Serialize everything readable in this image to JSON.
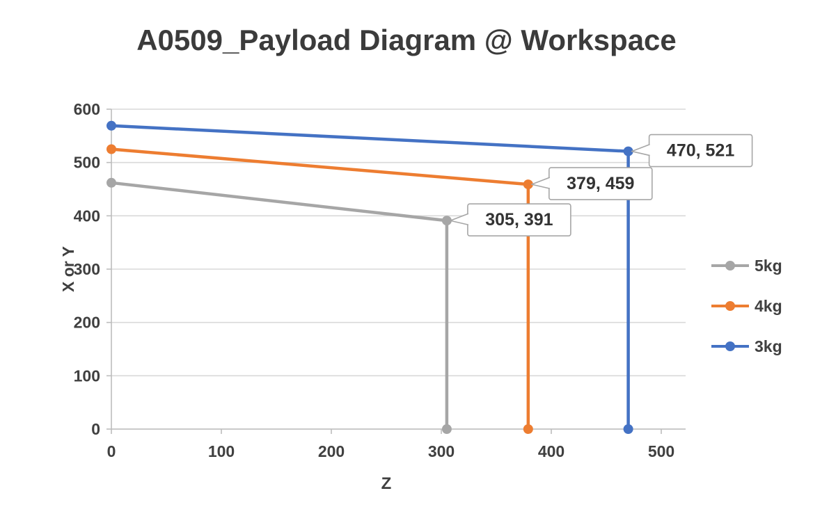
{
  "chart_data": {
    "type": "line",
    "title": "A0509_Payload Diagram @ Workspace",
    "xlabel": "Z",
    "ylabel": "X or Y",
    "xlim": [
      0,
      500
    ],
    "ylim": [
      0,
      600
    ],
    "xticks": [
      0,
      100,
      200,
      300,
      400,
      500
    ],
    "yticks": [
      0,
      100,
      200,
      300,
      400,
      500,
      600
    ],
    "grid": "horizontal-only",
    "legend_position": "right",
    "colors": {
      "gridline": "#D9D9D9",
      "axis": "#BDBDBD",
      "tick_text": "#404040",
      "axis_title_text": "#404040",
      "title_text": "#3B3B3B",
      "legend_text": "#404040",
      "callout_border": "#A6A6A6",
      "callout_bg": "#FFFFFF",
      "callout_text": "#333333"
    },
    "series": [
      {
        "name": "5kg",
        "color": "#A6A6A6",
        "points": [
          [
            0,
            462
          ],
          [
            305,
            391
          ],
          [
            305,
            0
          ]
        ],
        "data_label": "305, 391",
        "label_at": [
          305,
          391
        ]
      },
      {
        "name": "4kg",
        "color": "#ED7D31",
        "points": [
          [
            0,
            525
          ],
          [
            379,
            459
          ],
          [
            379,
            0
          ]
        ],
        "data_label": "379, 459",
        "label_at": [
          379,
          459
        ]
      },
      {
        "name": "3kg",
        "color": "#4472C4",
        "points": [
          [
            0,
            569
          ],
          [
            470,
            521
          ],
          [
            470,
            0
          ]
        ],
        "data_label": "470, 521",
        "label_at": [
          470,
          521
        ]
      }
    ]
  }
}
